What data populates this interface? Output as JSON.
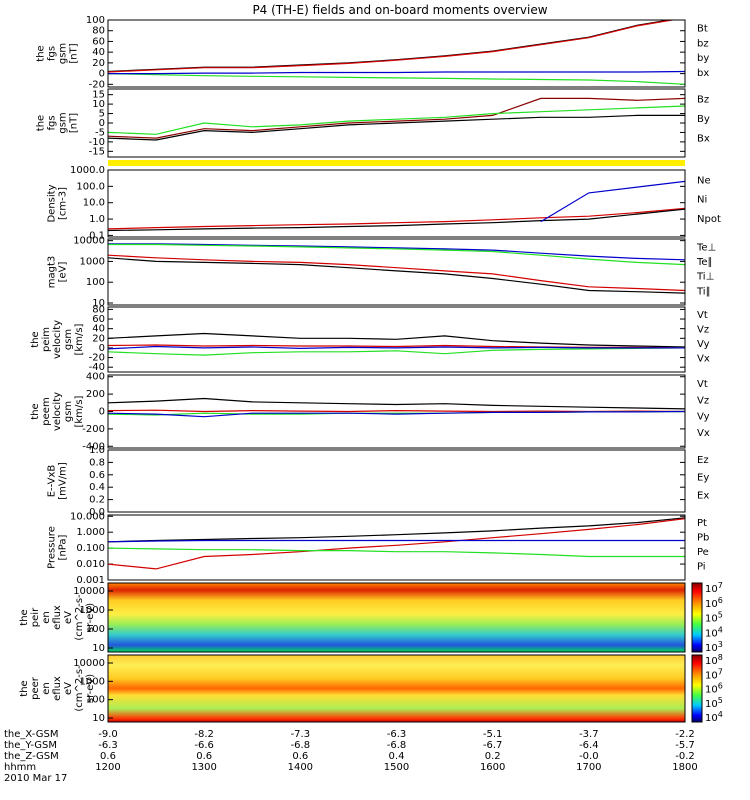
{
  "title": "P4 (TH-E) fields and on-board moments overview",
  "colors": {
    "black": "#000000",
    "red": "#d40000",
    "green": "#22e022",
    "blue": "#0000cc",
    "darkred": "#8b0000",
    "yellow": "#ffee00",
    "label_red": "#cc0000",
    "label_green": "#22cc22",
    "label_blue": "#0000cc"
  },
  "chart_data": [
    {
      "type": "line",
      "panel": "fgs-gsm-1",
      "ylabel": [
        "the",
        "fgs",
        "gsm",
        "[nT]"
      ],
      "yticks": [
        "100",
        "80",
        "60",
        "40",
        "20",
        "0",
        "-20"
      ],
      "ylim": [
        -25,
        100
      ],
      "legend": [
        {
          "name": "Bt",
          "color": "#000000"
        },
        {
          "name": "bz",
          "color": "#cc0000"
        },
        {
          "name": "by",
          "color": "#22cc22"
        },
        {
          "name": "bx",
          "color": "#0000cc"
        }
      ],
      "x": [
        "1200",
        "1230",
        "1300",
        "1330",
        "1400",
        "1430",
        "1500",
        "1530",
        "1600",
        "1630",
        "1700",
        "1730",
        "1800"
      ],
      "series": [
        {
          "name": "Bt",
          "color": "#000000",
          "values": [
            4,
            8,
            12,
            12,
            16,
            20,
            26,
            33,
            42,
            55,
            68,
            90,
            105
          ]
        },
        {
          "name": "bz",
          "color": "#d40000",
          "values": [
            3,
            7,
            11,
            11,
            15,
            19,
            25,
            32,
            41,
            54,
            67,
            89,
            104
          ]
        },
        {
          "name": "by",
          "color": "#22e022",
          "values": [
            0,
            -2,
            -4,
            -5,
            -6,
            -7,
            -8,
            -9,
            -10,
            -11,
            -12,
            -15,
            -20
          ]
        },
        {
          "name": "bx",
          "color": "#0000cc",
          "values": [
            0,
            0,
            1,
            1,
            2,
            2,
            2,
            3,
            3,
            3,
            3,
            3,
            4
          ]
        }
      ]
    },
    {
      "type": "line",
      "panel": "fgs-gsm-2",
      "ylabel": [
        "the",
        "fgs",
        "gsm",
        "[nT]"
      ],
      "yticks": [
        "15",
        "10",
        "5",
        "0",
        "-5",
        "-10",
        "-15"
      ],
      "ylim": [
        -18,
        18
      ],
      "legend": [
        {
          "name": "Bz",
          "color": "#8b0000"
        },
        {
          "name": "By",
          "color": "#22cc22"
        },
        {
          "name": "Bx",
          "color": "#000000"
        }
      ],
      "x": [
        "1200",
        "1230",
        "1300",
        "1330",
        "1400",
        "1430",
        "1500",
        "1530",
        "1600",
        "1630",
        "1700",
        "1730",
        "1800"
      ],
      "series": [
        {
          "name": "Bz",
          "color": "#8b0000",
          "values": [
            -7,
            -8,
            -3,
            -4,
            -2,
            0,
            1,
            2,
            4,
            13,
            13,
            12,
            13
          ]
        },
        {
          "name": "By",
          "color": "#22e022",
          "values": [
            -5,
            -6,
            0,
            -2,
            -1,
            1,
            2,
            3,
            5,
            6,
            7,
            8,
            9
          ]
        },
        {
          "name": "Bx",
          "color": "#000000",
          "values": [
            -8,
            -9,
            -4,
            -5,
            -3,
            -1,
            0,
            1,
            2,
            3,
            3,
            4,
            4
          ]
        }
      ]
    },
    {
      "type": "line",
      "panel": "density",
      "log": true,
      "ylabel": [
        "Density",
        "[cm-3]"
      ],
      "yticks": [
        "1000.0",
        "100.0",
        "10.0",
        "1.0",
        "0.1"
      ],
      "ylim": [
        0.08,
        1000
      ],
      "legend": [
        {
          "name": "Ne",
          "color": "#cc0000"
        },
        {
          "name": "Ni",
          "color": "#000000"
        },
        {
          "name": "Npot",
          "color": "#0000cc"
        }
      ],
      "x": [
        "1200",
        "1230",
        "1300",
        "1330",
        "1400",
        "1430",
        "1500",
        "1530",
        "1600",
        "1630",
        "1700",
        "1730",
        "1800"
      ],
      "series": [
        {
          "name": "Ne",
          "color": "#d40000",
          "values": [
            0.25,
            0.3,
            0.35,
            0.4,
            0.45,
            0.5,
            0.6,
            0.7,
            0.9,
            1.2,
            1.5,
            2.5,
            4.5
          ]
        },
        {
          "name": "Ni",
          "color": "#000000",
          "values": [
            0.2,
            0.22,
            0.25,
            0.28,
            0.3,
            0.35,
            0.4,
            0.5,
            0.6,
            0.8,
            1.0,
            2.0,
            4.0
          ]
        },
        {
          "name": "Npot",
          "color": "#0000cc",
          "values": [
            null,
            null,
            null,
            null,
            null,
            null,
            null,
            null,
            null,
            0.7,
            40,
            90,
            200
          ]
        }
      ]
    },
    {
      "type": "line",
      "panel": "temperature",
      "log": true,
      "ylabel": [
        "magt3",
        "[eV]"
      ],
      "yticks": [
        "10000",
        "1000",
        "100",
        "10"
      ],
      "ylim": [
        8,
        12000
      ],
      "legend": [
        {
          "name": "Te⊥",
          "color": "#cc0000"
        },
        {
          "name": "Te∥",
          "color": "#000000"
        },
        {
          "name": "Ti⊥",
          "color": "#0000cc"
        },
        {
          "name": "Ti∥",
          "color": "#22cc22"
        }
      ],
      "x": [
        "1200",
        "1230",
        "1300",
        "1330",
        "1400",
        "1430",
        "1500",
        "1530",
        "1600",
        "1630",
        "1700",
        "1730",
        "1800"
      ],
      "series": [
        {
          "name": "Te⊥",
          "color": "#d40000",
          "values": [
            2000,
            1500,
            1200,
            1000,
            900,
            700,
            500,
            350,
            250,
            120,
            60,
            50,
            40
          ]
        },
        {
          "name": "Te∥",
          "color": "#000000",
          "values": [
            1500,
            1000,
            900,
            800,
            700,
            500,
            350,
            250,
            150,
            80,
            40,
            35,
            30
          ]
        },
        {
          "name": "Ti⊥",
          "color": "#0000cc",
          "values": [
            7000,
            7000,
            6500,
            6000,
            5500,
            5000,
            4500,
            4000,
            3500,
            2500,
            1800,
            1400,
            1200
          ]
        },
        {
          "name": "Ti∥",
          "color": "#22e022",
          "values": [
            6500,
            6500,
            6000,
            5500,
            5000,
            4500,
            4000,
            3500,
            3000,
            2000,
            1300,
            900,
            700
          ]
        }
      ]
    },
    {
      "type": "line",
      "panel": "peim-velocity",
      "ylabel": [
        "the",
        "peim",
        "velocity",
        "gsm",
        "[km/s]"
      ],
      "yticks": [
        "80",
        "60",
        "40",
        "20",
        "0",
        "-20",
        "-40"
      ],
      "ylim": [
        -50,
        85
      ],
      "legend": [
        {
          "name": "Vt",
          "color": "#000000"
        },
        {
          "name": "Vz",
          "color": "#cc0000"
        },
        {
          "name": "Vy",
          "color": "#22cc22"
        },
        {
          "name": "Vx",
          "color": "#0000cc"
        }
      ],
      "x": [
        "1200",
        "1230",
        "1300",
        "1330",
        "1400",
        "1430",
        "1500",
        "1530",
        "1600",
        "1630",
        "1700",
        "1730",
        "1800"
      ],
      "series": [
        {
          "name": "Vt",
          "color": "#000000",
          "values": [
            20,
            25,
            30,
            25,
            20,
            20,
            18,
            25,
            15,
            10,
            6,
            4,
            2
          ]
        },
        {
          "name": "Vz",
          "color": "#d40000",
          "values": [
            5,
            6,
            4,
            5,
            4,
            4,
            3,
            5,
            3,
            2,
            1,
            1,
            0
          ]
        },
        {
          "name": "Vy",
          "color": "#22e022",
          "values": [
            -8,
            -12,
            -15,
            -10,
            -8,
            -8,
            -6,
            -12,
            -5,
            -3,
            -2,
            -1,
            0
          ]
        },
        {
          "name": "Vx",
          "color": "#0000cc",
          "values": [
            -2,
            3,
            0,
            2,
            -1,
            1,
            0,
            2,
            0,
            1,
            0,
            0,
            0
          ]
        }
      ]
    },
    {
      "type": "line",
      "panel": "peem-velocity",
      "ylabel": [
        "the",
        "peem",
        "velocity",
        "gsm",
        "[km/s]"
      ],
      "yticks": [
        "400",
        "200",
        "0",
        "-200",
        "-400"
      ],
      "ylim": [
        -420,
        420
      ],
      "legend": [
        {
          "name": "Vt",
          "color": "#000000"
        },
        {
          "name": "Vz",
          "color": "#cc0000"
        },
        {
          "name": "Vy",
          "color": "#22cc22"
        },
        {
          "name": "Vx",
          "color": "#0000cc"
        }
      ],
      "x": [
        "1200",
        "1230",
        "1300",
        "1330",
        "1400",
        "1430",
        "1500",
        "1530",
        "1600",
        "1630",
        "1700",
        "1730",
        "1800"
      ],
      "series": [
        {
          "name": "Vt",
          "color": "#000000",
          "values": [
            100,
            120,
            150,
            110,
            100,
            90,
            80,
            90,
            70,
            60,
            50,
            40,
            30
          ]
        },
        {
          "name": "Vz",
          "color": "#d40000",
          "values": [
            10,
            15,
            0,
            10,
            5,
            0,
            10,
            5,
            0,
            5,
            0,
            5,
            0
          ]
        },
        {
          "name": "Vy",
          "color": "#22e022",
          "values": [
            -30,
            -40,
            -20,
            -30,
            -30,
            -20,
            -20,
            -20,
            -10,
            -10,
            -5,
            -5,
            0
          ]
        },
        {
          "name": "Vx",
          "color": "#0000cc",
          "values": [
            -20,
            -30,
            -60,
            -20,
            -20,
            -20,
            -30,
            -20,
            -10,
            -10,
            -5,
            -5,
            0
          ]
        }
      ]
    },
    {
      "type": "line",
      "panel": "e-vxb",
      "ylabel": [
        "E--VxB",
        "[mV/m]"
      ],
      "yticks": [
        "1.0",
        "0.8",
        "0.6",
        "0.4",
        "0.2",
        "0.0"
      ],
      "ylim": [
        0,
        1
      ],
      "legend": [
        {
          "name": "Ez",
          "color": "#cc0000"
        },
        {
          "name": "Ey",
          "color": "#22cc22"
        },
        {
          "name": "Ex",
          "color": "#0000cc"
        }
      ],
      "series": []
    },
    {
      "type": "line",
      "panel": "pressure",
      "log": true,
      "ylabel": [
        "Pressure",
        "[nPa]"
      ],
      "yticks": [
        "10.000",
        "1.000",
        "0.100",
        "0.010",
        "0.001"
      ],
      "ylim": [
        0.001,
        12
      ],
      "legend": [
        {
          "name": "Pt",
          "color": "#000000"
        },
        {
          "name": "Pb",
          "color": "#cc0000"
        },
        {
          "name": "Pe",
          "color": "#22cc22"
        },
        {
          "name": "Pi",
          "color": "#0000cc"
        }
      ],
      "x": [
        "1200",
        "1230",
        "1300",
        "1330",
        "1400",
        "1430",
        "1500",
        "1530",
        "1600",
        "1630",
        "1700",
        "1730",
        "1800"
      ],
      "series": [
        {
          "name": "Pt",
          "color": "#000000",
          "values": [
            0.25,
            0.3,
            0.35,
            0.4,
            0.45,
            0.55,
            0.7,
            0.9,
            1.2,
            1.8,
            2.5,
            4.0,
            8.0
          ]
        },
        {
          "name": "Pb",
          "color": "#d40000",
          "values": [
            0.01,
            0.005,
            0.03,
            0.04,
            0.06,
            0.1,
            0.15,
            0.25,
            0.45,
            0.8,
            1.5,
            3.0,
            7.0
          ]
        },
        {
          "name": "Pe",
          "color": "#22e022",
          "values": [
            0.1,
            0.09,
            0.08,
            0.08,
            0.07,
            0.07,
            0.06,
            0.06,
            0.05,
            0.04,
            0.03,
            0.03,
            0.03
          ]
        },
        {
          "name": "Pi",
          "color": "#0000cc",
          "values": [
            0.25,
            0.28,
            0.3,
            0.3,
            0.3,
            0.3,
            0.3,
            0.3,
            0.3,
            0.3,
            0.3,
            0.3,
            0.3
          ]
        }
      ]
    },
    {
      "type": "heatmap",
      "panel": "peir-spectrogram",
      "ylabel": [
        "the",
        "peir",
        "en",
        "eflux",
        "eV",
        "(cm^2-s-",
        "sr-eV)"
      ],
      "yticks": [
        "10000",
        "1000",
        "100",
        "10"
      ],
      "colorbar_ticks": [
        "10^7",
        "10^6",
        "10^5",
        "10^4",
        "10^3"
      ]
    },
    {
      "type": "heatmap",
      "panel": "peer-spectrogram",
      "ylabel": [
        "the",
        "peer",
        "en",
        "eflux",
        "eV",
        "(cm^2-s-",
        "sr-eV)"
      ],
      "yticks": [
        "10000",
        "1000",
        "100",
        "10"
      ],
      "colorbar_ticks": [
        "10^8",
        "10^7",
        "10^6",
        "10^5",
        "10^4"
      ]
    }
  ],
  "xaxis": {
    "rows": [
      {
        "label": "the_X-GSM",
        "values": [
          "-9.0",
          "-8.2",
          "-7.3",
          "-6.3",
          "-5.1",
          "-3.7",
          "-2.2"
        ]
      },
      {
        "label": "the_Y-GSM",
        "values": [
          "-6.3",
          "-6.6",
          "-6.8",
          "-6.8",
          "-6.7",
          "-6.4",
          "-5.7"
        ]
      },
      {
        "label": "the_Z-GSM",
        "values": [
          "0.6",
          "0.6",
          "0.6",
          "0.4",
          "0.2",
          "-0.0",
          "-0.2"
        ]
      },
      {
        "label": "hhmm",
        "values": [
          "1200",
          "1300",
          "1400",
          "1500",
          "1600",
          "1700",
          "1800"
        ]
      }
    ],
    "date": "2010 Mar 17"
  }
}
